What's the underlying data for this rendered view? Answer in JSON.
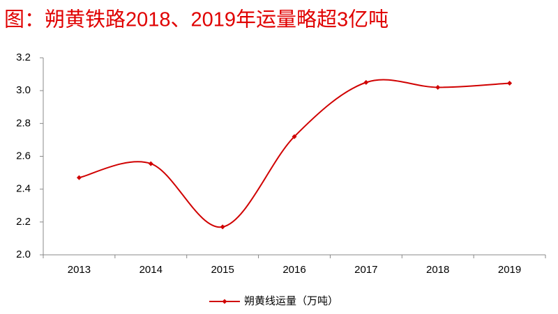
{
  "chart_data": {
    "type": "line",
    "title": "图：朔黄铁路2018、2019年运量略超3亿吨",
    "categories": [
      "2013",
      "2014",
      "2015",
      "2016",
      "2017",
      "2018",
      "2019"
    ],
    "series": [
      {
        "name": "朔黄线运量（万吨）",
        "color": "#d00000",
        "values": [
          2.47,
          2.555,
          2.17,
          2.72,
          3.05,
          3.02,
          3.045
        ]
      }
    ],
    "ylim": [
      2.0,
      3.2
    ],
    "yticks": [
      {
        "value": 2,
        "label": "2.0"
      },
      2.2,
      2.4,
      2.6,
      2.8,
      {
        "value": 3,
        "label": "3.0"
      },
      3.2
    ],
    "smooth": true,
    "grid": false,
    "legend": "bottom"
  }
}
